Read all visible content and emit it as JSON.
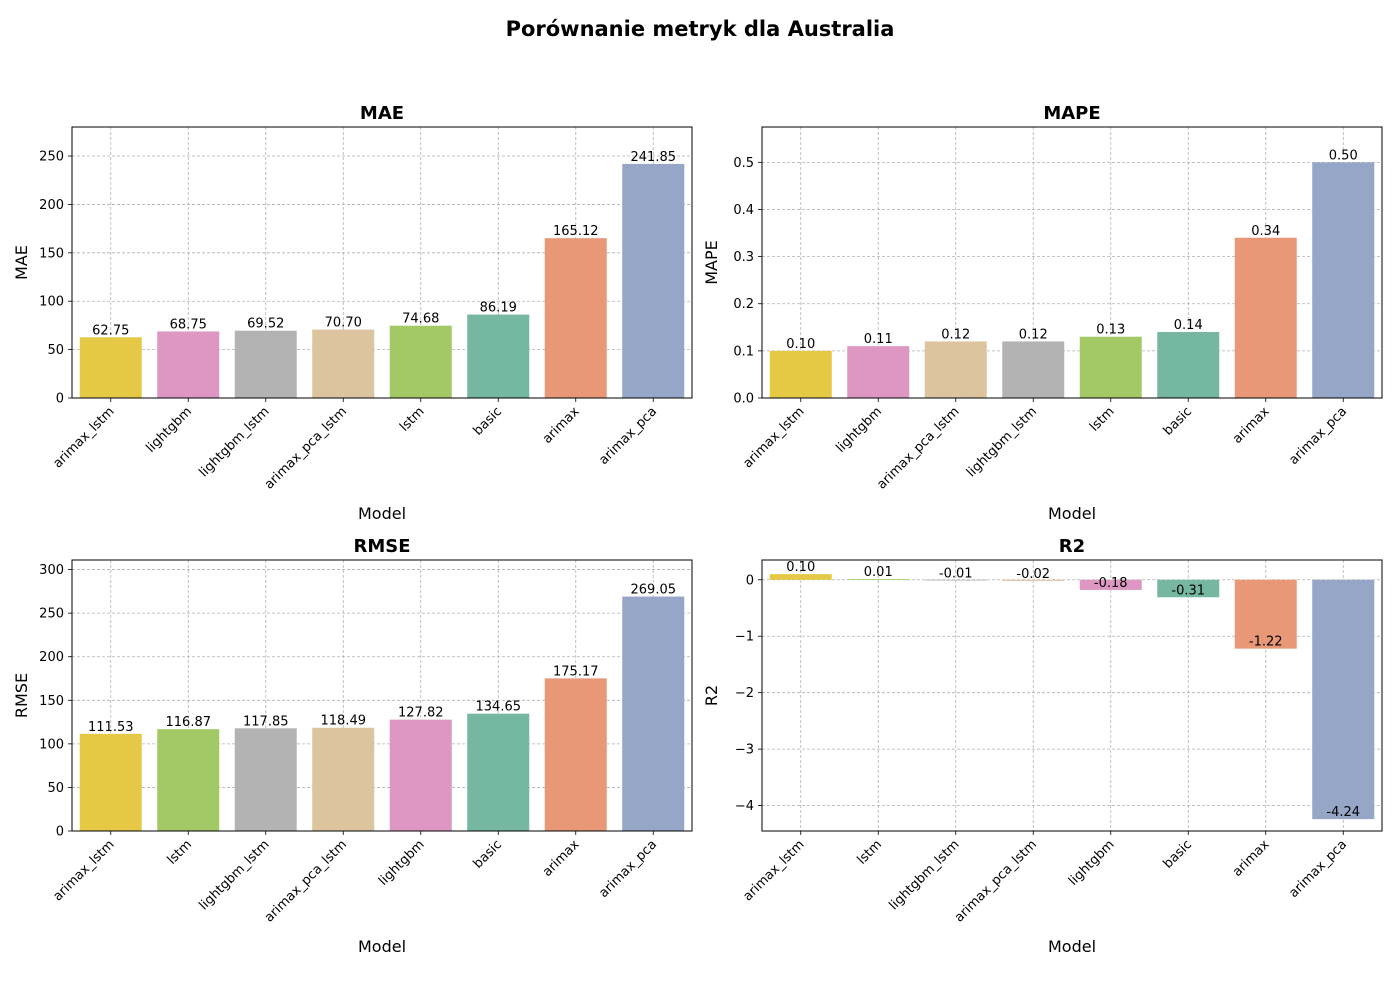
{
  "suptitle": "Porównanie metryk dla Australia",
  "chart_data": [
    {
      "type": "bar",
      "title": "MAE",
      "xlabel": "Model",
      "ylabel": "MAE",
      "categories": [
        "arimax_lstm",
        "lightgbm",
        "lightgbm_lstm",
        "arimax_pca_lstm",
        "lstm",
        "basic",
        "arimax",
        "arimax_pca"
      ],
      "values": [
        62.75,
        68.75,
        69.52,
        70.7,
        74.68,
        86.19,
        165.12,
        241.85
      ],
      "labels": [
        "62.75",
        "68.75",
        "69.52",
        "70.70",
        "74.68",
        "86.19",
        "165.12",
        "241.85"
      ],
      "ylim": [
        0,
        280
      ],
      "yticks": [
        0,
        50,
        100,
        150,
        200,
        250
      ],
      "ytick_labels": [
        "0",
        "50",
        "100",
        "150",
        "200",
        "250"
      ],
      "grid": true
    },
    {
      "type": "bar",
      "title": "MAPE",
      "xlabel": "Model",
      "ylabel": "MAPE",
      "categories": [
        "arimax_lstm",
        "lightgbm",
        "arimax_pca_lstm",
        "lightgbm_lstm",
        "lstm",
        "basic",
        "arimax",
        "arimax_pca"
      ],
      "values": [
        0.1,
        0.11,
        0.12,
        0.12,
        0.13,
        0.14,
        0.34,
        0.5
      ],
      "labels": [
        "0.10",
        "0.11",
        "0.12",
        "0.12",
        "0.13",
        "0.14",
        "0.34",
        "0.50"
      ],
      "ylim": [
        0,
        0.575
      ],
      "yticks": [
        0,
        0.1,
        0.2,
        0.3,
        0.4,
        0.5
      ],
      "ytick_labels": [
        "0.0",
        "0.1",
        "0.2",
        "0.3",
        "0.4",
        "0.5"
      ],
      "grid": true
    },
    {
      "type": "bar",
      "title": "RMSE",
      "xlabel": "Model",
      "ylabel": "RMSE",
      "categories": [
        "arimax_lstm",
        "lstm",
        "lightgbm_lstm",
        "arimax_pca_lstm",
        "lightgbm",
        "basic",
        "arimax",
        "arimax_pca"
      ],
      "values": [
        111.53,
        116.87,
        117.85,
        118.49,
        127.82,
        134.65,
        175.17,
        269.05
      ],
      "labels": [
        "111.53",
        "116.87",
        "117.85",
        "118.49",
        "127.82",
        "134.65",
        "175.17",
        "269.05"
      ],
      "ylim": [
        0,
        311
      ],
      "yticks": [
        0,
        50,
        100,
        150,
        200,
        250,
        300
      ],
      "ytick_labels": [
        "0",
        "50",
        "100",
        "150",
        "200",
        "250",
        "300"
      ],
      "grid": true
    },
    {
      "type": "bar",
      "title": "R2",
      "xlabel": "Model",
      "ylabel": "R2",
      "categories": [
        "arimax_lstm",
        "lstm",
        "lightgbm_lstm",
        "arimax_pca_lstm",
        "lightgbm",
        "basic",
        "arimax",
        "arimax_pca"
      ],
      "values": [
        0.1,
        0.01,
        -0.01,
        -0.02,
        -0.18,
        -0.31,
        -1.22,
        -4.24
      ],
      "labels": [
        "0.10",
        "0.01",
        "-0.01",
        "-0.02",
        "-0.18",
        "-0.31",
        "-1.22",
        "-4.24"
      ],
      "ylim": [
        -4.45,
        0.35
      ],
      "yticks": [
        0,
        -1,
        -2,
        -3,
        -4
      ],
      "ytick_labels": [
        "0",
        "−1",
        "−2",
        "−3",
        "−4"
      ],
      "grid": true
    }
  ],
  "colors": {
    "arimax_lstm": "#e5c944",
    "lightgbm": "#dd97c2",
    "lightgbm_lstm": "#b3b3b3",
    "arimax_pca_lstm": "#dcc49f",
    "lstm": "#a3c966",
    "basic": "#75b7a0",
    "arimax": "#e89877",
    "arimax_pca": "#95a6c6"
  }
}
